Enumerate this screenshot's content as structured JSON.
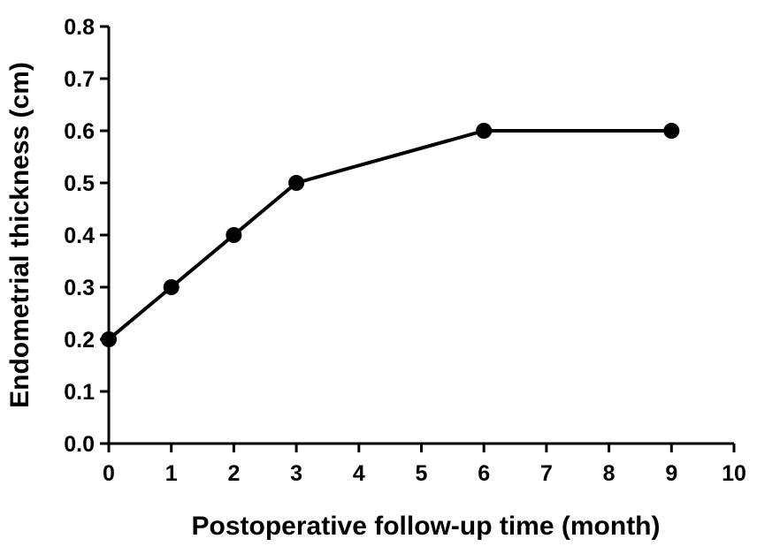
{
  "chart_data": {
    "type": "line",
    "title": "",
    "xlabel": "Postoperative follow-up time (month)",
    "ylabel": "Endometrial thickness (cm)",
    "xlim": [
      0,
      10
    ],
    "ylim": [
      0,
      0.8
    ],
    "xticks": [
      "0",
      "1",
      "2",
      "3",
      "4",
      "5",
      "6",
      "7",
      "8",
      "9",
      "10"
    ],
    "yticks": [
      "0.0",
      "0.1",
      "0.2",
      "0.3",
      "0.4",
      "0.5",
      "0.6",
      "0.7",
      "0.8"
    ],
    "grid": false,
    "legend": "none",
    "x": [
      0,
      1,
      2,
      3,
      6,
      9
    ],
    "series": [
      {
        "values": [
          0.2,
          0.3,
          0.4,
          0.5,
          0.6,
          0.6
        ]
      }
    ],
    "line_color": "#000000",
    "marker_color": "#000000"
  }
}
